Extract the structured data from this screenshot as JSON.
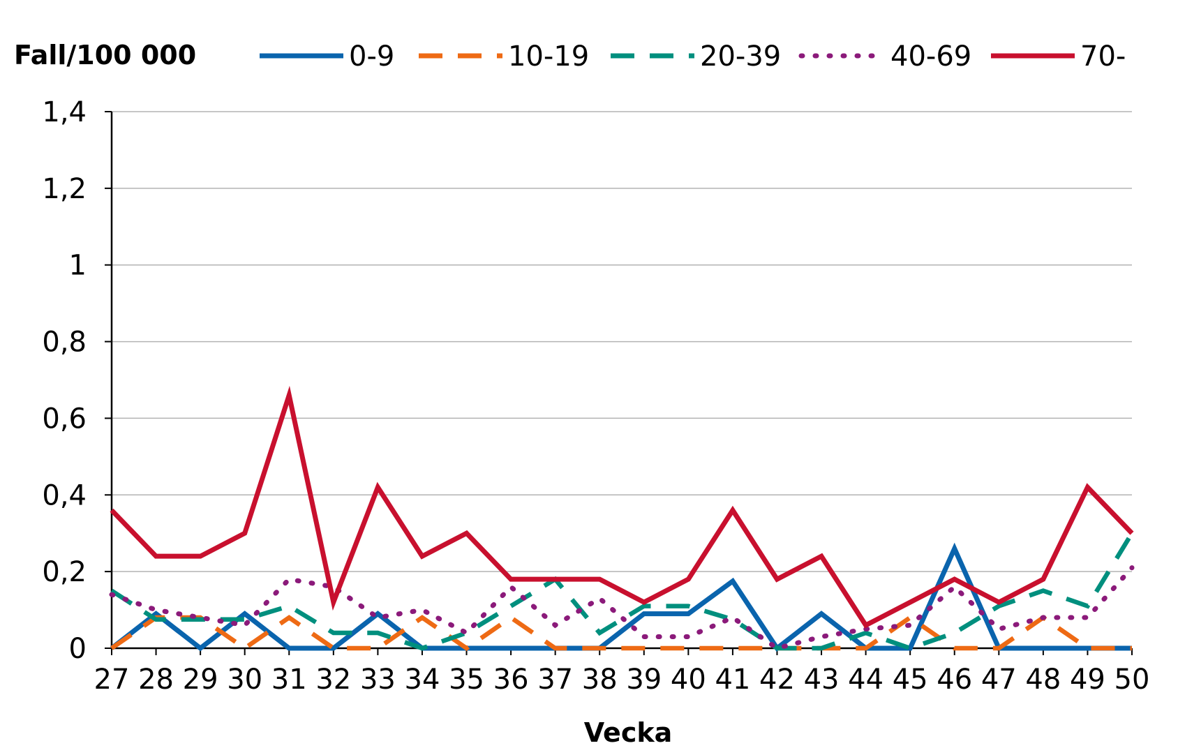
{
  "chart_data": {
    "type": "line",
    "title": "",
    "ylabel": "Fall/100 000",
    "xlabel": "Vecka",
    "ylim": [
      0,
      1.4
    ],
    "y_ticks": [
      "0",
      "0,2",
      "0,4",
      "0,6",
      "0,8",
      "1",
      "1,2",
      "1,4"
    ],
    "y_tick_values": [
      0,
      0.2,
      0.4,
      0.6,
      0.8,
      1.0,
      1.2,
      1.4
    ],
    "categories": [
      "27",
      "28",
      "29",
      "30",
      "31",
      "32",
      "33",
      "34",
      "35",
      "36",
      "37",
      "38",
      "39",
      "40",
      "41",
      "42",
      "43",
      "44",
      "45",
      "46",
      "47",
      "48",
      "49",
      "50"
    ],
    "grid": "horizontal",
    "legend_position": "top",
    "series": [
      {
        "name": "0-9",
        "color": "#0a64ad",
        "style": "solid",
        "values": [
          0,
          0.09,
          0,
          0.09,
          0,
          0,
          0.09,
          0,
          0,
          0,
          0,
          0,
          0.09,
          0.09,
          0.175,
          0,
          0.09,
          0,
          0,
          0.26,
          0,
          0,
          0,
          0
        ]
      },
      {
        "name": "10-19",
        "color": "#ee6a14",
        "style": "dashed",
        "values": [
          0,
          0.08,
          0.08,
          0,
          0.08,
          0,
          0,
          0.08,
          0,
          0.08,
          0,
          0,
          0,
          0,
          0,
          0,
          0,
          0,
          0.08,
          0,
          0,
          0.08,
          0,
          0
        ]
      },
      {
        "name": "20-39",
        "color": "#008f7e",
        "style": "dashed",
        "values": [
          0.15,
          0.075,
          0.075,
          0.075,
          0.11,
          0.04,
          0.04,
          0,
          0.04,
          0.11,
          0.18,
          0.04,
          0.11,
          0.11,
          0.075,
          0,
          0,
          0.04,
          0,
          0.04,
          0.11,
          0.15,
          0.11,
          0.3
        ]
      },
      {
        "name": "40-69",
        "color": "#8b1a7a",
        "style": "dotted",
        "values": [
          0.14,
          0.1,
          0.08,
          0.06,
          0.18,
          0.16,
          0.08,
          0.1,
          0.04,
          0.16,
          0.06,
          0.13,
          0.03,
          0.03,
          0.08,
          0,
          0.03,
          0.05,
          0.06,
          0.16,
          0.05,
          0.08,
          0.08,
          0.21
        ]
      },
      {
        "name": "70-",
        "color": "#c8102e",
        "style": "solid",
        "values": [
          0.36,
          0.24,
          0.24,
          0.3,
          0.66,
          0.12,
          0.42,
          0.24,
          0.3,
          0.18,
          0.18,
          0.18,
          0.12,
          0.18,
          0.36,
          0.18,
          0.24,
          0.06,
          0.12,
          0.18,
          0.12,
          0.18,
          0.42,
          0.3
        ]
      }
    ]
  }
}
